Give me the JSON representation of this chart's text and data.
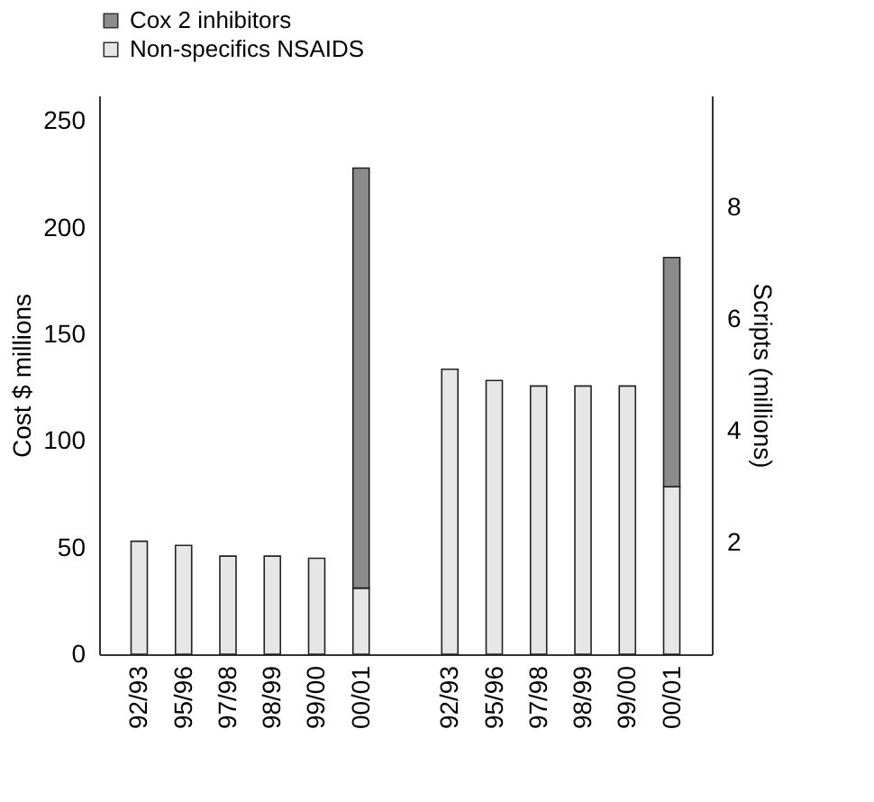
{
  "chart_data": {
    "type": "bar",
    "stacked": true,
    "legend": "top",
    "grid": false,
    "ylabel": "Cost $ millions",
    "y2label": "Scripts (millions)",
    "categories": [
      "92/93",
      "95/96",
      "97/98",
      "98/99",
      "99/00",
      "00/01",
      null,
      "92/93",
      "95/96",
      "97/98",
      "98/99",
      "99/00",
      "00/01"
    ],
    "ylim": [
      0,
      262
    ],
    "yticks": [
      0,
      50,
      100,
      150,
      200,
      250
    ],
    "y2lim": [
      0,
      10
    ],
    "y2ticks": [
      2,
      4,
      6,
      8
    ],
    "series": [
      {
        "name": "Non-specifics NSAIDS",
        "color": "#e6e6e6",
        "values": [
          53,
          51,
          46,
          46,
          45,
          31,
          null,
          null,
          null,
          null,
          null,
          null,
          null
        ]
      },
      {
        "name": "Cox 2 inhibitors",
        "color": "#8c8c8c",
        "values": [
          null,
          null,
          null,
          null,
          null,
          197,
          null,
          null,
          null,
          null,
          null,
          null,
          null
        ]
      },
      {
        "color": "#e6e6e6",
        "axis": "y2",
        "values": [
          null,
          null,
          null,
          null,
          null,
          null,
          null,
          5.1,
          4.9,
          4.8,
          4.8,
          4.8,
          3.0
        ]
      },
      {
        "color": "#8c8c8c",
        "axis": "y2",
        "values": [
          null,
          null,
          null,
          null,
          null,
          null,
          null,
          null,
          null,
          null,
          null,
          null,
          4.1
        ]
      }
    ]
  }
}
